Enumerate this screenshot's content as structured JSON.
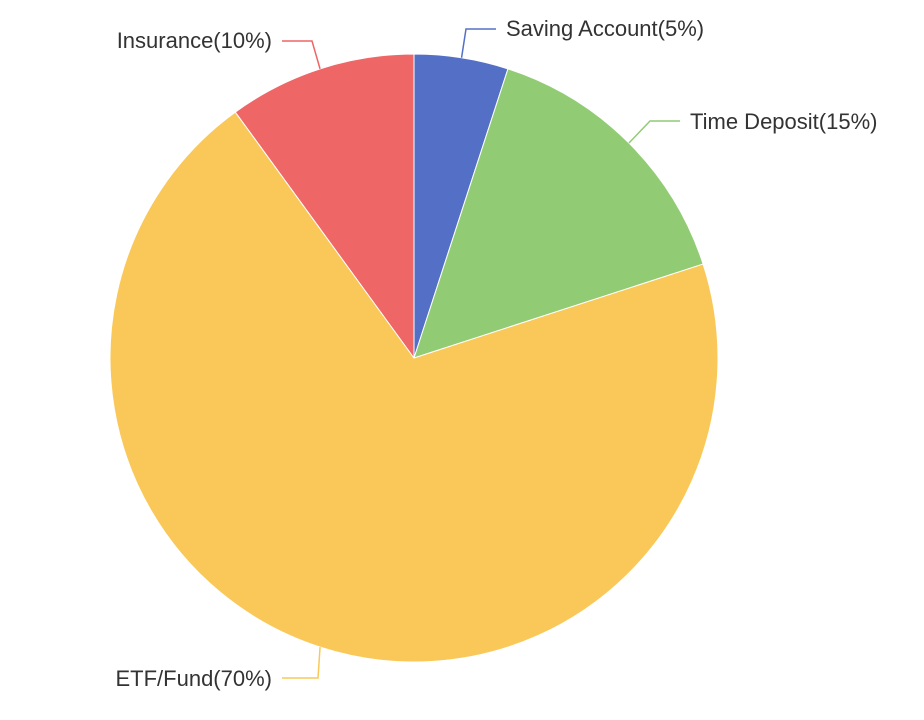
{
  "chart_data": {
    "type": "pie",
    "title": "",
    "start_angle_deg": 90,
    "direction": "clockwise",
    "slices": [
      {
        "name": "Saving Account",
        "value": 5,
        "label": "Saving Account(5%)",
        "color": "#5470c6"
      },
      {
        "name": "Time Deposit",
        "value": 15,
        "label": "Time Deposit(15%)",
        "color": "#91cc75"
      },
      {
        "name": "ETF/Fund",
        "value": 70,
        "label": "ETF/Fund(70%)",
        "color": "#fac858"
      },
      {
        "name": "Insurance",
        "value": 10,
        "label": "Insurance(10%)",
        "color": "#ee6666"
      }
    ],
    "legend": false
  }
}
